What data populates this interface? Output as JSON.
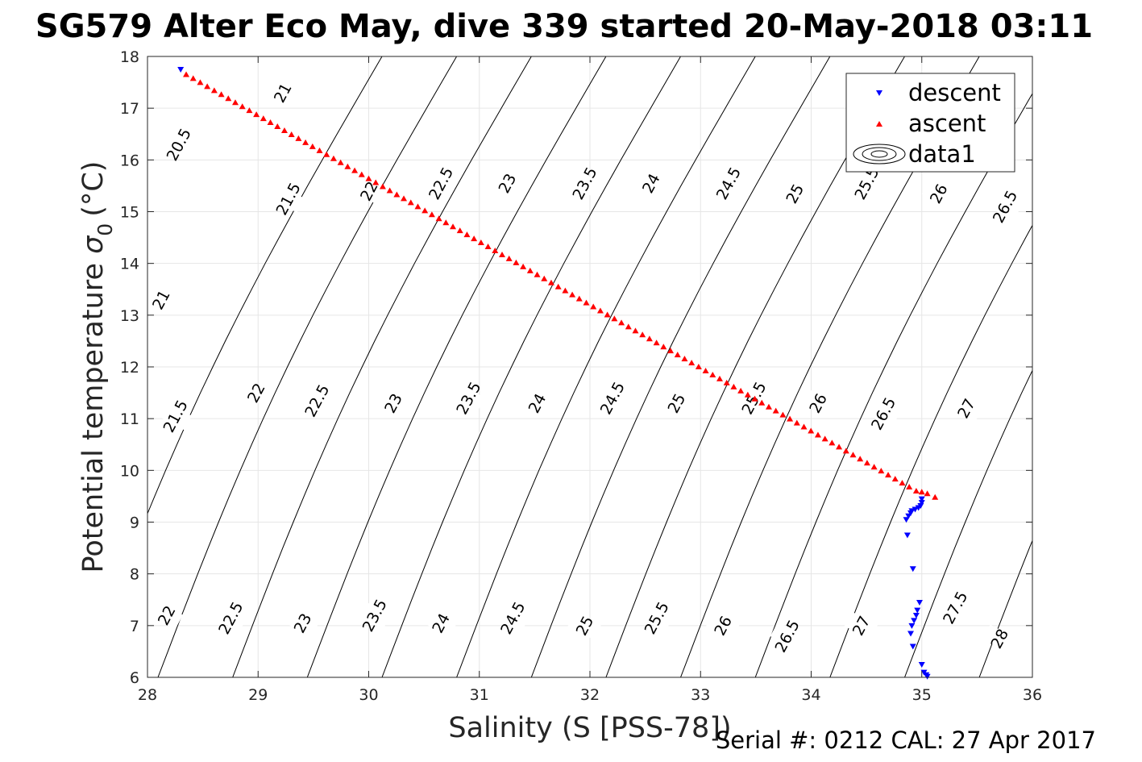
{
  "chart_data": {
    "type": "scatter",
    "title": "SG579 Alter Eco May, dive 339 started 20-May-2018 03:11",
    "xlabel": "Salinity (S [PSS-78])",
    "ylabel_main": "Potential temperature",
    "ylabel_sigma": "σ",
    "ylabel_sub": "0",
    "ylabel_unit": "(°C)",
    "xlim": [
      28,
      36
    ],
    "ylim": [
      6,
      18
    ],
    "xticks": [
      28,
      29,
      30,
      31,
      32,
      33,
      34,
      35,
      36
    ],
    "yticks": [
      6,
      7,
      8,
      9,
      10,
      11,
      12,
      13,
      14,
      15,
      16,
      17,
      18
    ],
    "grid": true,
    "legend_position": "top-right",
    "legend": [
      {
        "label": "descent",
        "marker": "triangle-down",
        "color": "#0000ff"
      },
      {
        "label": "ascent",
        "marker": "triangle-up",
        "color": "#ff0000"
      },
      {
        "label": "data1",
        "marker": "contour"
      }
    ],
    "contours": {
      "levels": [
        20.5,
        21,
        21.5,
        22,
        22.5,
        23,
        23.5,
        24,
        24.5,
        25,
        25.5,
        26,
        26.5,
        27,
        27.5,
        28
      ],
      "labels": [
        {
          "text": "20.5",
          "s": 28.28,
          "t": 16.3
        },
        {
          "text": "21",
          "s": 29.22,
          "t": 17.3
        },
        {
          "text": "21",
          "s": 28.12,
          "t": 13.3
        },
        {
          "text": "21.5",
          "s": 29.27,
          "t": 15.25
        },
        {
          "text": "21.5",
          "s": 28.25,
          "t": 11.05
        },
        {
          "text": "22",
          "s": 30.0,
          "t": 15.4
        },
        {
          "text": "22",
          "s": 28.98,
          "t": 11.5
        },
        {
          "text": "22",
          "s": 28.17,
          "t": 7.2
        },
        {
          "text": "22.5",
          "s": 30.65,
          "t": 15.55
        },
        {
          "text": "22.5",
          "s": 29.53,
          "t": 11.35
        },
        {
          "text": "22.5",
          "s": 28.75,
          "t": 7.15
        },
        {
          "text": "23",
          "s": 31.25,
          "t": 15.55
        },
        {
          "text": "23",
          "s": 30.22,
          "t": 11.3
        },
        {
          "text": "23",
          "s": 29.4,
          "t": 7.05
        },
        {
          "text": "23.5",
          "s": 31.95,
          "t": 15.55
        },
        {
          "text": "23.5",
          "s": 30.9,
          "t": 11.4
        },
        {
          "text": "23.5",
          "s": 30.05,
          "t": 7.2
        },
        {
          "text": "24",
          "s": 32.55,
          "t": 15.55
        },
        {
          "text": "24",
          "s": 31.52,
          "t": 11.3
        },
        {
          "text": "24",
          "s": 30.65,
          "t": 7.05
        },
        {
          "text": "24.5",
          "s": 33.25,
          "t": 15.55
        },
        {
          "text": "24.5",
          "s": 32.2,
          "t": 11.4
        },
        {
          "text": "24.5",
          "s": 31.3,
          "t": 7.15
        },
        {
          "text": "25",
          "s": 33.85,
          "t": 15.35
        },
        {
          "text": "25",
          "s": 32.78,
          "t": 11.3
        },
        {
          "text": "25",
          "s": 31.95,
          "t": 7.0
        },
        {
          "text": "25.5",
          "s": 34.5,
          "t": 15.55
        },
        {
          "text": "25.5",
          "s": 33.48,
          "t": 11.4
        },
        {
          "text": "25.5",
          "s": 32.6,
          "t": 7.15
        },
        {
          "text": "26",
          "s": 35.15,
          "t": 15.35
        },
        {
          "text": "26",
          "s": 34.06,
          "t": 11.3
        },
        {
          "text": "26",
          "s": 33.2,
          "t": 7.0
        },
        {
          "text": "26.5",
          "s": 35.75,
          "t": 15.1
        },
        {
          "text": "26.5",
          "s": 34.65,
          "t": 11.1
        },
        {
          "text": "26.5",
          "s": 33.78,
          "t": 6.8
        },
        {
          "text": "27",
          "s": 35.4,
          "t": 11.2
        },
        {
          "text": "27",
          "s": 34.45,
          "t": 7.0
        },
        {
          "text": "27.5",
          "s": 35.3,
          "t": 7.35
        },
        {
          "text": "28",
          "s": 35.7,
          "t": 6.75
        }
      ]
    },
    "series": [
      {
        "name": "descent",
        "marker": "triangle-down",
        "color": "#0000ff",
        "points": [
          [
            28.3,
            17.75
          ],
          [
            35.0,
            9.45
          ],
          [
            35.0,
            9.38
          ],
          [
            34.99,
            9.32
          ],
          [
            34.97,
            9.28
          ],
          [
            34.94,
            9.25
          ],
          [
            34.91,
            9.22
          ],
          [
            34.9,
            9.18
          ],
          [
            34.88,
            9.12
          ],
          [
            34.86,
            9.05
          ],
          [
            34.87,
            8.75
          ],
          [
            34.92,
            8.1
          ],
          [
            34.98,
            7.45
          ],
          [
            34.96,
            7.3
          ],
          [
            34.95,
            7.2
          ],
          [
            34.93,
            7.1
          ],
          [
            34.91,
            7.0
          ],
          [
            34.9,
            6.85
          ],
          [
            34.92,
            6.6
          ],
          [
            35.0,
            6.25
          ],
          [
            35.02,
            6.1
          ],
          [
            35.04,
            6.05
          ],
          [
            35.05,
            6.02
          ]
        ]
      },
      {
        "name": "ascent",
        "marker": "triangle-up",
        "color": "#ff0000",
        "start": [
          28.35,
          17.65
        ],
        "end": [
          34.95,
          9.6
        ],
        "count": 105,
        "extra": [
          [
            35.12,
            9.48
          ],
          [
            35.05,
            9.55
          ],
          [
            35.0,
            9.58
          ]
        ]
      }
    ]
  },
  "footer": {
    "serial": "Serial #: 0212  CAL: 27 Apr 2017"
  }
}
